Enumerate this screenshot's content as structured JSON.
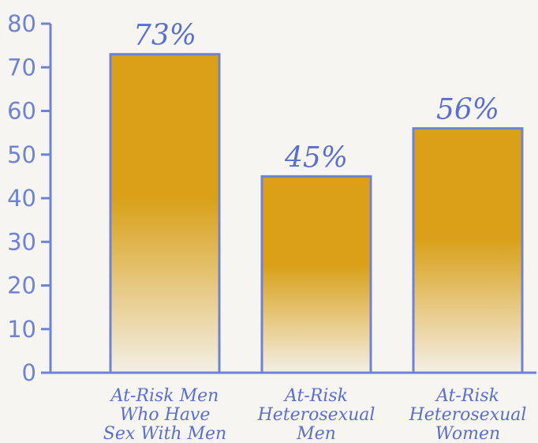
{
  "chart_data": {
    "type": "bar",
    "categories": [
      [
        "At-Risk Men",
        "Who Have",
        "Sex With Men"
      ],
      [
        "At-Risk",
        "Heterosexual",
        "Men"
      ],
      [
        "At-Risk",
        "Heterosexual",
        "Women"
      ]
    ],
    "values": [
      73,
      45,
      56
    ],
    "value_labels": [
      "73%",
      "45%",
      "56%"
    ],
    "title": "",
    "xlabel": "",
    "ylabel": "",
    "ylim": [
      0,
      80
    ],
    "yticks": [
      0,
      10,
      20,
      30,
      40,
      50,
      60,
      70,
      80
    ],
    "grid": false,
    "legend": "none"
  },
  "colors": {
    "axis": "#6f82d6",
    "bar_border": "#6f82d6",
    "bar_top": "#d9a018",
    "bar_bottom": "#f3efe6",
    "text": "#5b6fcf"
  }
}
